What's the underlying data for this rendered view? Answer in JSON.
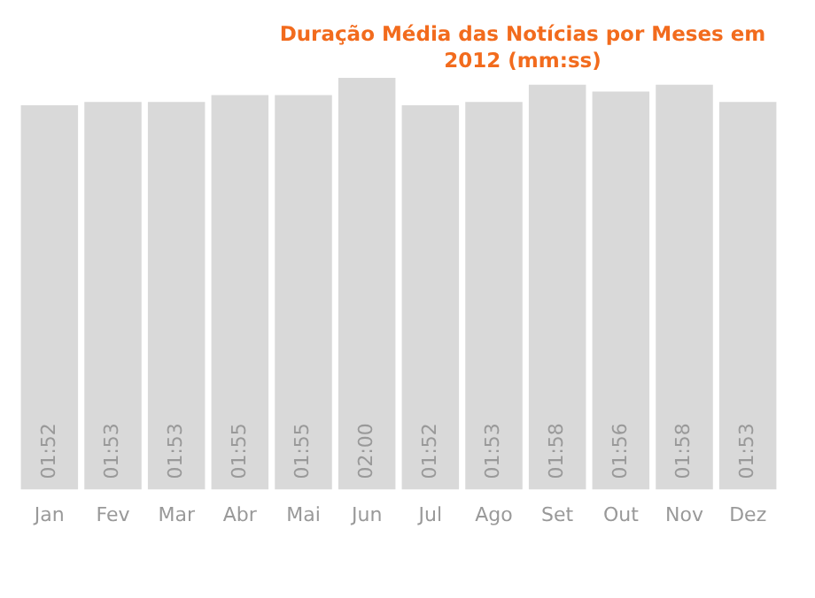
{
  "chart_data": {
    "type": "bar",
    "title": "Duração Média das Notícias por Meses em 2012 (mm:ss)",
    "categories": [
      "Jan",
      "Fev",
      "Mar",
      "Abr",
      "Mai",
      "Jun",
      "Jul",
      "Ago",
      "Set",
      "Out",
      "Nov",
      "Dez"
    ],
    "values": [
      112,
      113,
      113,
      115,
      115,
      120,
      112,
      113,
      118,
      116,
      118,
      113
    ],
    "value_labels": [
      "01:52",
      "01:53",
      "01:53",
      "01:55",
      "01:55",
      "02:00",
      "01:52",
      "01:53",
      "01:58",
      "01:56",
      "01:58",
      "01:53"
    ],
    "color": "#d9d9d9",
    "grid": false,
    "legend": false
  }
}
